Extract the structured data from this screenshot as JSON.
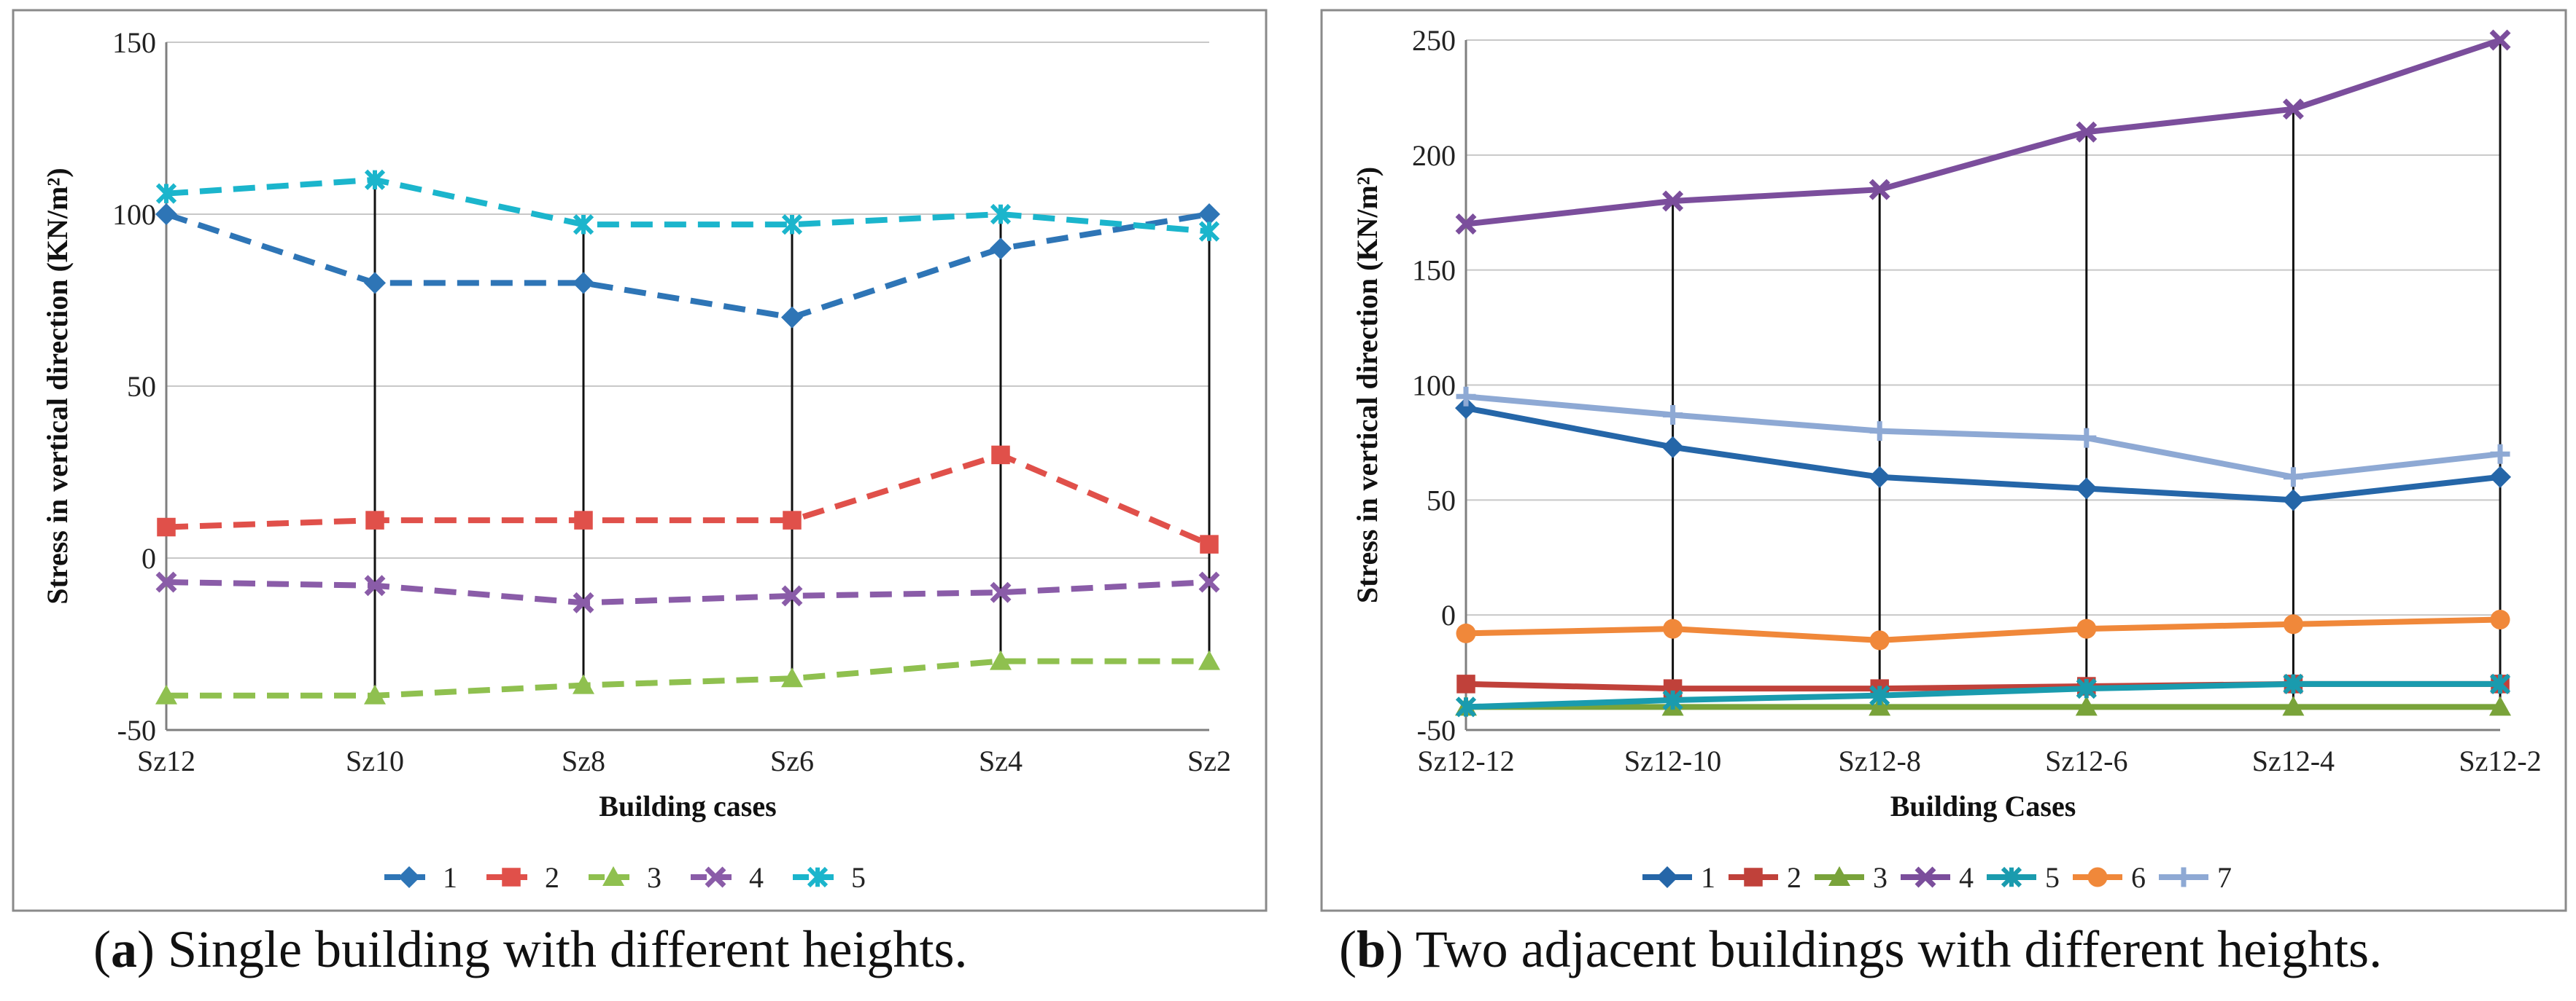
{
  "chart_data": [
    {
      "type": "line",
      "caption_letter": "a",
      "caption_text": " Single building with different heights.",
      "categories": [
        "Sz12",
        "Sz10",
        "Sz8",
        "Sz6",
        "Sz4",
        "Sz2"
      ],
      "xlabel": "Building cases",
      "ylabel": "Stress in vertical direction (KN/m²)",
      "ylim": [
        -50,
        150
      ],
      "yticks": [
        -50,
        0,
        50,
        100,
        150
      ],
      "grid": "horizontal",
      "legend": "bottom",
      "line_style": "dashed",
      "series": [
        {
          "name": "1",
          "color": "#2E75B6",
          "marker": "diamond",
          "values": [
            100,
            80,
            80,
            70,
            90,
            100
          ]
        },
        {
          "name": "2",
          "color": "#E0504A",
          "marker": "square",
          "values": [
            9,
            11,
            11,
            11,
            30,
            4
          ]
        },
        {
          "name": "3",
          "color": "#8FC04F",
          "marker": "triangle",
          "values": [
            -40,
            -40,
            -37,
            -35,
            -30,
            -30
          ]
        },
        {
          "name": "4",
          "color": "#8A5CA8",
          "marker": "x",
          "values": [
            -7,
            -8,
            -13,
            -11,
            -10,
            -7
          ]
        },
        {
          "name": "5",
          "color": "#1BB5CC",
          "marker": "star",
          "values": [
            106,
            110,
            97,
            97,
            100,
            95
          ]
        }
      ]
    },
    {
      "type": "line",
      "caption_letter": "b",
      "caption_text": " Two adjacent buildings with different heights.",
      "categories": [
        "Sz12-12",
        "Sz12-10",
        "Sz12-8",
        "Sz12-6",
        "Sz12-4",
        "Sz12-2"
      ],
      "xlabel": "Building Cases",
      "ylabel": "Stress in vertical direction (KN/m²)",
      "ylim": [
        -50,
        250
      ],
      "yticks": [
        -50,
        0,
        50,
        100,
        150,
        200,
        250
      ],
      "grid": "horizontal",
      "legend": "bottom",
      "line_style": "solid",
      "series": [
        {
          "name": "1",
          "color": "#2566A8",
          "marker": "diamond",
          "values": [
            90,
            73,
            60,
            55,
            50,
            60
          ]
        },
        {
          "name": "2",
          "color": "#C0413A",
          "marker": "square",
          "values": [
            -30,
            -32,
            -32,
            -31,
            -30,
            -30
          ]
        },
        {
          "name": "3",
          "color": "#79A33A",
          "marker": "triangle",
          "values": [
            -40,
            -40,
            -40,
            -40,
            -40,
            -40
          ]
        },
        {
          "name": "4",
          "color": "#7B4E9C",
          "marker": "x",
          "values": [
            170,
            180,
            185,
            210,
            220,
            250
          ]
        },
        {
          "name": "5",
          "color": "#1A9BAE",
          "marker": "star",
          "values": [
            -40,
            -37,
            -35,
            -32,
            -30,
            -30
          ]
        },
        {
          "name": "6",
          "color": "#F0883A",
          "marker": "circle",
          "values": [
            -8,
            -6,
            -11,
            -6,
            -4,
            -2
          ]
        },
        {
          "name": "7",
          "color": "#8EA9D4",
          "marker": "plus",
          "values": [
            95,
            87,
            80,
            77,
            60,
            70
          ]
        }
      ]
    }
  ]
}
